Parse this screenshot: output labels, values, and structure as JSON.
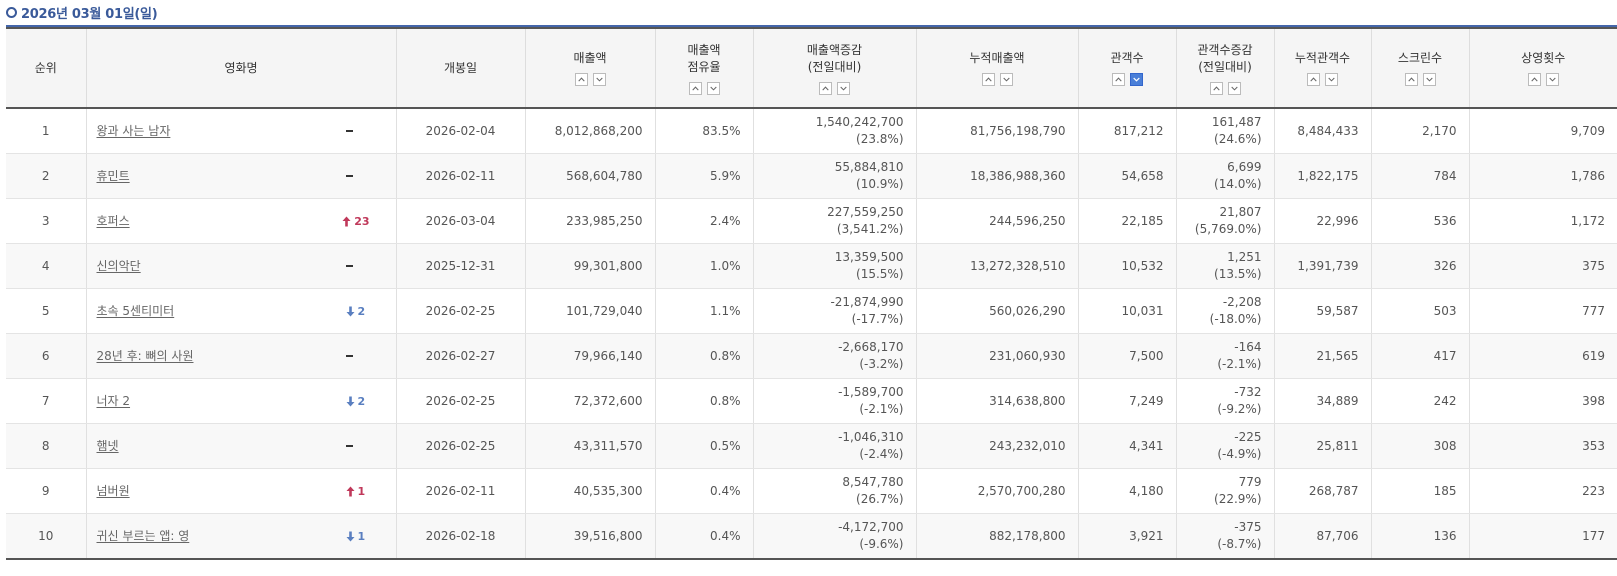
{
  "header": {
    "date_title": "2026년 03월 01일(일)"
  },
  "table": {
    "columns": [
      {
        "key": "rank",
        "line1": "순위",
        "line2": "",
        "sortable": false
      },
      {
        "key": "title",
        "line1": "영화명",
        "line2": "",
        "sortable": false
      },
      {
        "key": "open",
        "line1": "개봉일",
        "line2": "",
        "sortable": false
      },
      {
        "key": "sales",
        "line1": "매출액",
        "line2": "",
        "sortable": true,
        "active": ""
      },
      {
        "key": "share",
        "line1": "매출액",
        "line2": "점유율",
        "sortable": true,
        "active": ""
      },
      {
        "key": "sales_chg",
        "line1": "매출액증감",
        "line2": "(전일대비)",
        "sortable": true,
        "active": ""
      },
      {
        "key": "acc_sales",
        "line1": "누적매출액",
        "line2": "",
        "sortable": true,
        "active": ""
      },
      {
        "key": "audience",
        "line1": "관객수",
        "line2": "",
        "sortable": true,
        "active": "down"
      },
      {
        "key": "aud_chg",
        "line1": "관객수증감",
        "line2": "(전일대비)",
        "sortable": true,
        "active": ""
      },
      {
        "key": "acc_aud",
        "line1": "누적관객수",
        "line2": "",
        "sortable": true,
        "active": ""
      },
      {
        "key": "screens",
        "line1": "스크린수",
        "line2": "",
        "sortable": true,
        "active": ""
      },
      {
        "key": "shows",
        "line1": "상영횟수",
        "line2": "",
        "sortable": true,
        "active": ""
      }
    ],
    "rows": [
      {
        "rank": "1",
        "title": "왕과 사는 남자",
        "change_dir": "none",
        "change_num": "",
        "open": "2026-02-04",
        "sales": "8,012,868,200",
        "share": "83.5%",
        "sales_chg": "1,540,242,700",
        "sales_chg_pct": "(23.8%)",
        "acc_sales": "81,756,198,790",
        "audience": "817,212",
        "aud_chg": "161,487",
        "aud_chg_pct": "(24.6%)",
        "acc_aud": "8,484,433",
        "screens": "2,170",
        "shows": "9,709"
      },
      {
        "rank": "2",
        "title": "휴민트",
        "change_dir": "none",
        "change_num": "",
        "open": "2026-02-11",
        "sales": "568,604,780",
        "share": "5.9%",
        "sales_chg": "55,884,810",
        "sales_chg_pct": "(10.9%)",
        "acc_sales": "18,386,988,360",
        "audience": "54,658",
        "aud_chg": "6,699",
        "aud_chg_pct": "(14.0%)",
        "acc_aud": "1,822,175",
        "screens": "784",
        "shows": "1,786"
      },
      {
        "rank": "3",
        "title": "호퍼스",
        "change_dir": "up",
        "change_num": "23",
        "open": "2026-03-04",
        "sales": "233,985,250",
        "share": "2.4%",
        "sales_chg": "227,559,250",
        "sales_chg_pct": "(3,541.2%)",
        "acc_sales": "244,596,250",
        "audience": "22,185",
        "aud_chg": "21,807",
        "aud_chg_pct": "(5,769.0%)",
        "acc_aud": "22,996",
        "screens": "536",
        "shows": "1,172"
      },
      {
        "rank": "4",
        "title": "신의악단",
        "change_dir": "none",
        "change_num": "",
        "open": "2025-12-31",
        "sales": "99,301,800",
        "share": "1.0%",
        "sales_chg": "13,359,500",
        "sales_chg_pct": "(15.5%)",
        "acc_sales": "13,272,328,510",
        "audience": "10,532",
        "aud_chg": "1,251",
        "aud_chg_pct": "(13.5%)",
        "acc_aud": "1,391,739",
        "screens": "326",
        "shows": "375"
      },
      {
        "rank": "5",
        "title": "초속 5센티미터",
        "change_dir": "down",
        "change_num": "2",
        "open": "2026-02-25",
        "sales": "101,729,040",
        "share": "1.1%",
        "sales_chg": "-21,874,990",
        "sales_chg_pct": "(-17.7%)",
        "acc_sales": "560,026,290",
        "audience": "10,031",
        "aud_chg": "-2,208",
        "aud_chg_pct": "(-18.0%)",
        "acc_aud": "59,587",
        "screens": "503",
        "shows": "777"
      },
      {
        "rank": "6",
        "title": "28년 후: 뼈의 사원",
        "change_dir": "none",
        "change_num": "",
        "open": "2026-02-27",
        "sales": "79,966,140",
        "share": "0.8%",
        "sales_chg": "-2,668,170",
        "sales_chg_pct": "(-3.2%)",
        "acc_sales": "231,060,930",
        "audience": "7,500",
        "aud_chg": "-164",
        "aud_chg_pct": "(-2.1%)",
        "acc_aud": "21,565",
        "screens": "417",
        "shows": "619"
      },
      {
        "rank": "7",
        "title": "너자 2",
        "change_dir": "down",
        "change_num": "2",
        "open": "2026-02-25",
        "sales": "72,372,600",
        "share": "0.8%",
        "sales_chg": "-1,589,700",
        "sales_chg_pct": "(-2.1%)",
        "acc_sales": "314,638,800",
        "audience": "7,249",
        "aud_chg": "-732",
        "aud_chg_pct": "(-9.2%)",
        "acc_aud": "34,889",
        "screens": "242",
        "shows": "398"
      },
      {
        "rank": "8",
        "title": "햄넷",
        "change_dir": "none",
        "change_num": "",
        "open": "2026-02-25",
        "sales": "43,311,570",
        "share": "0.5%",
        "sales_chg": "-1,046,310",
        "sales_chg_pct": "(-2.4%)",
        "acc_sales": "243,232,010",
        "audience": "4,341",
        "aud_chg": "-225",
        "aud_chg_pct": "(-4.9%)",
        "acc_aud": "25,811",
        "screens": "308",
        "shows": "353"
      },
      {
        "rank": "9",
        "title": "넘버원",
        "change_dir": "up",
        "change_num": "1",
        "open": "2026-02-11",
        "sales": "40,535,300",
        "share": "0.4%",
        "sales_chg": "8,547,780",
        "sales_chg_pct": "(26.7%)",
        "acc_sales": "2,570,700,280",
        "audience": "4,180",
        "aud_chg": "779",
        "aud_chg_pct": "(22.9%)",
        "acc_aud": "268,787",
        "screens": "185",
        "shows": "223"
      },
      {
        "rank": "10",
        "title": "귀신 부르는 앱: 영",
        "change_dir": "down",
        "change_num": "1",
        "open": "2026-02-18",
        "sales": "39,516,800",
        "share": "0.4%",
        "sales_chg": "-4,172,700",
        "sales_chg_pct": "(-9.6%)",
        "acc_sales": "882,178,800",
        "audience": "3,921",
        "aud_chg": "-375",
        "aud_chg_pct": "(-8.7%)",
        "acc_aud": "87,706",
        "screens": "136",
        "shows": "177"
      }
    ]
  },
  "colors": {
    "accent": "#3a5a9a",
    "up": "#c0385a",
    "down": "#5a7fc0",
    "sort_active": "#4a7fd8"
  },
  "icons": {
    "sort_asc": "caret-up-icon",
    "sort_desc": "caret-down-icon",
    "rank_up": "arrow-up-icon",
    "rank_down": "arrow-down-icon",
    "no_change": "dash-icon"
  }
}
